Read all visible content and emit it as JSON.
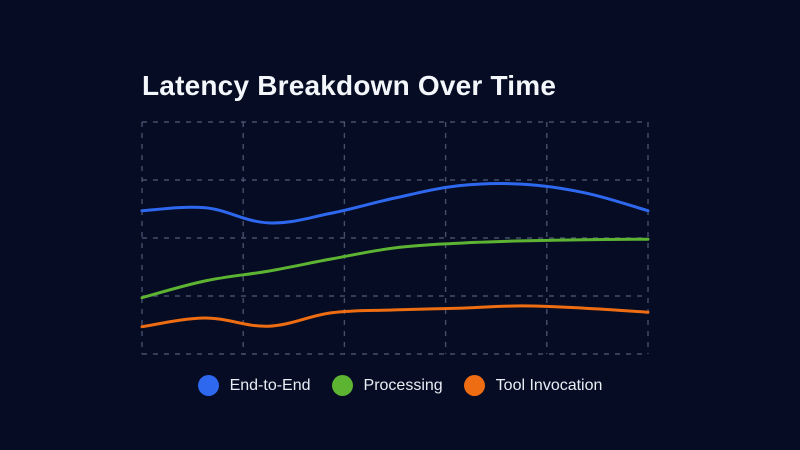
{
  "title": "Latency Breakdown Over Time",
  "colors": {
    "background": "#060c23",
    "grid": "#505c78",
    "title_text": "#f3f6fa",
    "legend_text": "#e9edf4",
    "end_to_end": "#2d68ef",
    "processing": "#5cb432",
    "tool_invocation": "#ee6c12"
  },
  "chart_data": {
    "type": "line",
    "title": "Latency Breakdown Over Time",
    "xlabel": "",
    "ylabel": "",
    "tick_labels": {
      "x": [],
      "y": []
    },
    "x": [
      0,
      1,
      2,
      3,
      4,
      5,
      6,
      7,
      8
    ],
    "xlim": [
      0,
      8
    ],
    "ylim": [
      0,
      4
    ],
    "grid": {
      "visible": true,
      "style": "dashed",
      "h_lines": [
        0,
        1,
        2,
        3,
        4
      ],
      "v_lines": [
        0,
        1.6,
        3.2,
        4.8,
        6.4,
        8
      ]
    },
    "legend_position": "bottom",
    "series": [
      {
        "name": "End-to-End",
        "color": "#2d68ef",
        "values": [
          2.47,
          2.52,
          2.26,
          2.43,
          2.69,
          2.9,
          2.93,
          2.78,
          2.47
        ]
      },
      {
        "name": "Processing",
        "color": "#5cb432",
        "values": [
          0.97,
          1.26,
          1.43,
          1.64,
          1.83,
          1.91,
          1.95,
          1.97,
          1.98
        ]
      },
      {
        "name": "Tool Invocation",
        "color": "#ee6c12",
        "values": [
          0.47,
          0.62,
          0.48,
          0.71,
          0.76,
          0.79,
          0.83,
          0.79,
          0.72
        ]
      }
    ]
  },
  "legend": {
    "items": [
      {
        "label": "End-to-End",
        "color": "#2d68ef"
      },
      {
        "label": "Processing",
        "color": "#5cb432"
      },
      {
        "label": "Tool Invocation",
        "color": "#ee6c12"
      }
    ]
  }
}
